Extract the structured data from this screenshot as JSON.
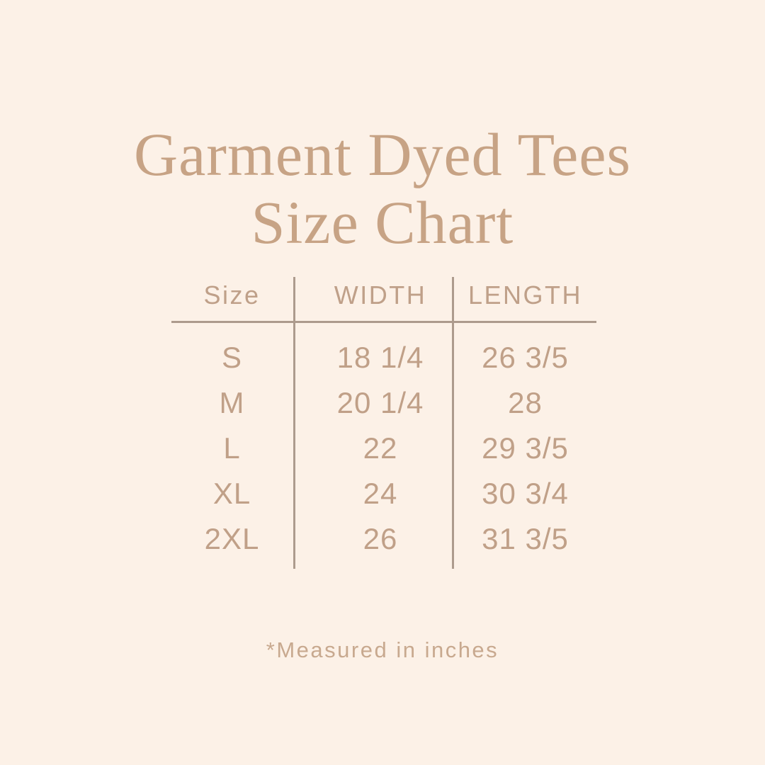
{
  "page": {
    "background_color": "#fcf1e7",
    "accent_color": "#c7a385",
    "line_color": "#ad9b8d"
  },
  "title": {
    "line1": "Garment Dyed Tees",
    "line2": "Size Chart"
  },
  "table": {
    "headers": [
      "Size",
      "WIDTH",
      "LENGTH"
    ],
    "rows": [
      {
        "size": "S",
        "width": "18 1/4",
        "length": "26 3/5"
      },
      {
        "size": "M",
        "width": "20 1/4",
        "length": "28"
      },
      {
        "size": "L",
        "width": "22",
        "length": "29 3/5"
      },
      {
        "size": "XL",
        "width": "24",
        "length": "30 3/4"
      },
      {
        "size": "2XL",
        "width": "26",
        "length": "31 3/5"
      }
    ]
  },
  "footnote": "*Measured in inches"
}
